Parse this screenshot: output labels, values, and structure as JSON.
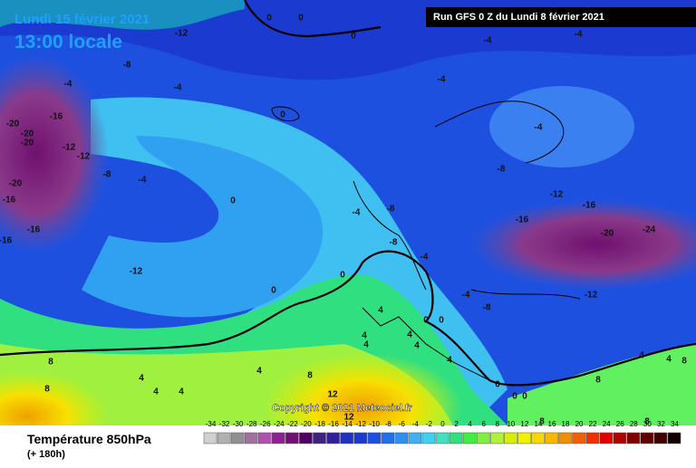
{
  "header": {
    "date": "Lundi 15 février 2021",
    "time": "13:00 locale"
  },
  "run_info": "Run GFS 0 Z du Lundi 8 février 2021",
  "copyright": "Copyright © 2021 Meteociel.fr",
  "footer": {
    "title": "Température 850hPa",
    "subtitle": "(+ 180h)"
  },
  "contour_labels": [
    0,
    0,
    -12,
    0,
    -8,
    -4,
    -4,
    -4,
    -4,
    -4,
    0,
    -20,
    -16,
    -20,
    -20,
    -12,
    -12,
    -8,
    -4,
    -4,
    -8,
    -20,
    -16,
    0,
    -12,
    -16,
    -4,
    -8,
    -16,
    -24,
    -20,
    -16,
    -16,
    -8,
    -4,
    -12,
    0,
    0,
    -4,
    -12,
    -8,
    4,
    0,
    0,
    4,
    4,
    4,
    4,
    4,
    8,
    4,
    8,
    4,
    4,
    4,
    8,
    0,
    12,
    0,
    0,
    4,
    8,
    4,
    8,
    12,
    8,
    8
  ],
  "legend": {
    "values": [
      -34,
      -32,
      -30,
      -28,
      -26,
      -24,
      -22,
      -20,
      -18,
      -16,
      -14,
      -12,
      -10,
      -8,
      -6,
      -4,
      -2,
      0,
      2,
      4,
      6,
      8,
      10,
      12,
      14,
      16,
      18,
      20,
      22,
      24,
      26,
      28,
      30,
      32,
      34
    ],
    "colors": [
      "#d0d0d0",
      "#b0b0b0",
      "#909090",
      "#a070a0",
      "#b050b0",
      "#902090",
      "#701070",
      "#500060",
      "#402080",
      "#3020a0",
      "#2030c0",
      "#1a3ad0",
      "#1e50e0",
      "#2070f0",
      "#3090f0",
      "#40b0f0",
      "#40d0f0",
      "#40e0c0",
      "#30e080",
      "#40f040",
      "#80f040",
      "#b0f040",
      "#d8f000",
      "#f0f000",
      "#f8d800",
      "#f8b800",
      "#f09000",
      "#f06000",
      "#f03000",
      "#e00000",
      "#b00000",
      "#800000",
      "#600000",
      "#400000",
      "#100000"
    ]
  }
}
